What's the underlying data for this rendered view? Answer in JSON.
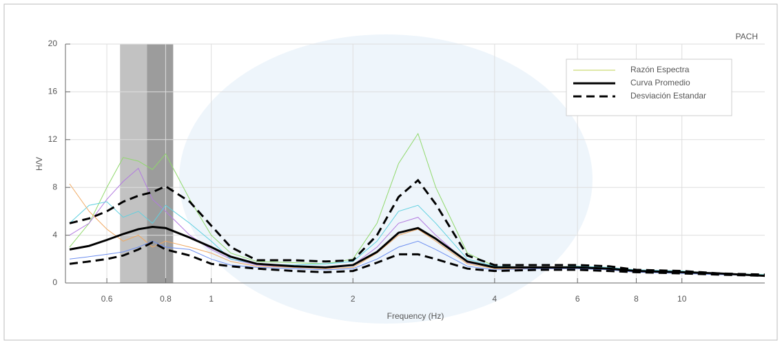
{
  "chart_data": {
    "type": "line",
    "title": "PACH",
    "xlabel": "Frequency (Hz)",
    "ylabel": "H/V",
    "xscale": "log",
    "xlim": [
      0.49,
      15
    ],
    "ylim": [
      0,
      20
    ],
    "xticks": [
      0.6,
      0.8,
      1,
      2,
      4,
      6,
      8,
      10
    ],
    "yticks": [
      0,
      4,
      8,
      12,
      16,
      20
    ],
    "grid": true,
    "legend": "upper right",
    "bands": [
      {
        "xmin": 0.64,
        "xmax": 0.73,
        "color": "#c2c2c2"
      },
      {
        "xmin": 0.73,
        "xmax": 0.83,
        "color": "#9c9c9c"
      }
    ],
    "x": [
      0.5,
      0.55,
      0.6,
      0.65,
      0.7,
      0.75,
      0.8,
      0.9,
      1.0,
      1.1,
      1.25,
      1.5,
      1.75,
      2.0,
      2.25,
      2.5,
      2.75,
      3.0,
      3.5,
      4,
      5,
      6,
      7,
      8,
      10,
      12,
      15
    ],
    "spectral_ratios": {
      "name": "Razón Espectra",
      "color": "#dfe8a8",
      "windows": [
        {
          "color": "#8fd86a",
          "values": [
            3,
            5,
            8,
            10.5,
            10.2,
            9.5,
            10.8,
            7,
            4,
            2.5,
            1.8,
            1.7,
            1.6,
            2,
            5,
            10,
            12.5,
            8,
            2.5,
            1.4,
            1.3,
            1.4,
            1.3,
            1.0,
            1.0,
            0.8,
            0.7
          ]
        },
        {
          "color": "#b27ae0",
          "values": [
            4,
            5,
            7,
            8.5,
            9.6,
            7,
            6,
            4,
            2.8,
            2,
            1.5,
            1.3,
            1.2,
            1.5,
            3,
            5,
            5.5,
            4,
            1.7,
            1.3,
            1.2,
            1.3,
            1.2,
            1.0,
            0.9,
            0.8,
            0.6
          ]
        },
        {
          "color": "#5fd0e0",
          "values": [
            5,
            6.5,
            6.8,
            5.5,
            6,
            5,
            6.5,
            5,
            3.5,
            2,
            1.6,
            1.5,
            1.6,
            1.8,
            3.5,
            6,
            6.5,
            5,
            2,
            1.4,
            1.3,
            1.4,
            1.3,
            1.1,
            1.0,
            0.8,
            0.7
          ]
        },
        {
          "color": "#f0a860",
          "values": [
            8.3,
            6,
            4.5,
            3.5,
            4,
            3,
            3.5,
            3,
            2.5,
            1.8,
            1.4,
            1.3,
            1.2,
            1.3,
            2.5,
            4,
            4.5,
            3.5,
            1.6,
            1.2,
            1.2,
            1.2,
            1.1,
            0.9,
            0.9,
            0.7,
            0.6
          ]
        },
        {
          "color": "#6c8ef0",
          "values": [
            2,
            2.2,
            2.4,
            2.6,
            3,
            3.5,
            3,
            2.8,
            2,
            1.5,
            1.3,
            1.2,
            1.1,
            1.2,
            2,
            3,
            3.5,
            2.8,
            1.4,
            1.1,
            1.2,
            1.2,
            1.1,
            0.9,
            0.8,
            0.7,
            0.6
          ]
        }
      ]
    },
    "mean": {
      "name": "Curva Promedio",
      "color": "#000000",
      "values": [
        2.8,
        3.1,
        3.6,
        4.1,
        4.5,
        4.7,
        4.6,
        3.8,
        3.0,
        2.2,
        1.6,
        1.4,
        1.3,
        1.5,
        2.6,
        4.2,
        4.6,
        3.7,
        1.8,
        1.3,
        1.3,
        1.3,
        1.2,
        1.0,
        0.9,
        0.8,
        0.6
      ]
    },
    "std": {
      "name": "Desviación Estandar",
      "color": "#000000",
      "upper": [
        5.0,
        5.4,
        6.0,
        6.8,
        7.3,
        7.6,
        8.1,
        6.8,
        4.8,
        3.0,
        1.9,
        1.9,
        1.8,
        1.9,
        4.0,
        7.2,
        8.6,
        6.6,
        2.3,
        1.5,
        1.5,
        1.5,
        1.4,
        1.1,
        1.0,
        0.8,
        0.7
      ],
      "lower": [
        1.6,
        1.8,
        2.0,
        2.3,
        2.8,
        3.4,
        2.8,
        2.3,
        1.6,
        1.4,
        1.2,
        1.0,
        0.9,
        1.0,
        1.7,
        2.4,
        2.4,
        2.0,
        1.2,
        1.0,
        1.1,
        1.1,
        1.0,
        0.9,
        0.8,
        0.7,
        0.6
      ]
    }
  }
}
